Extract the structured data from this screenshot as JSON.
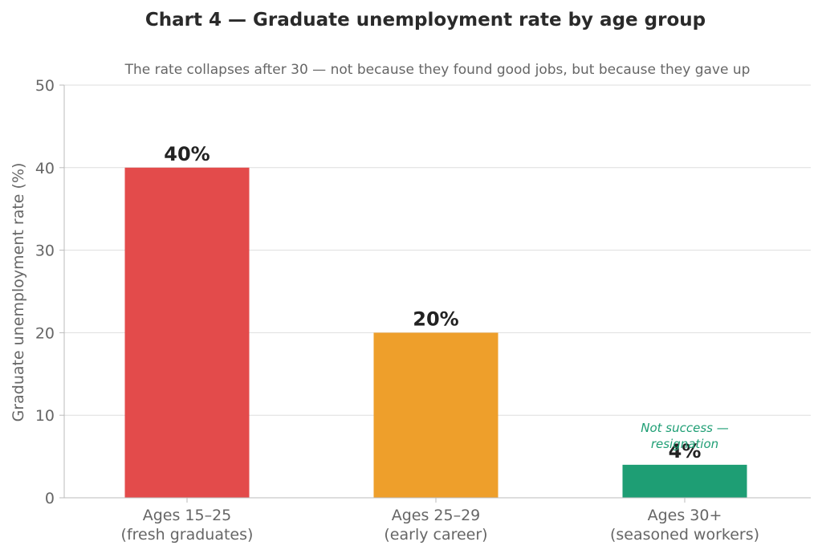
{
  "chart_data": {
    "type": "bar",
    "title": "Chart 4 — Graduate unemployment rate by age group",
    "subtitle": "The rate collapses after 30 — not because they found good jobs, but because they gave up",
    "xlabel": "",
    "ylabel": "Graduate unemployment rate (%)",
    "ylim": [
      0,
      50
    ],
    "yticks": [
      0,
      10,
      20,
      30,
      40,
      50
    ],
    "grid": "horizontal",
    "categories": [
      [
        "Ages 15–25",
        "(fresh graduates)"
      ],
      [
        "Ages 25–29",
        "(early career)"
      ],
      [
        "Ages 30+",
        "(seasoned workers)"
      ]
    ],
    "values": [
      40,
      20,
      4
    ],
    "data_labels": [
      "40%",
      "20%",
      "4%"
    ],
    "colors": [
      "#e34b4b",
      "#ee9f2b",
      "#1e9e74"
    ],
    "annotation": {
      "category_index": 2,
      "lines": [
        "Not success —",
        "resignation"
      ],
      "color": "#1e9e74"
    },
    "style": {
      "title_color": "#2a2a2a",
      "text_color": "#666666",
      "axis_color": "#bbbbbb",
      "grid_color": "#dedede",
      "label_color": "#222222"
    }
  }
}
